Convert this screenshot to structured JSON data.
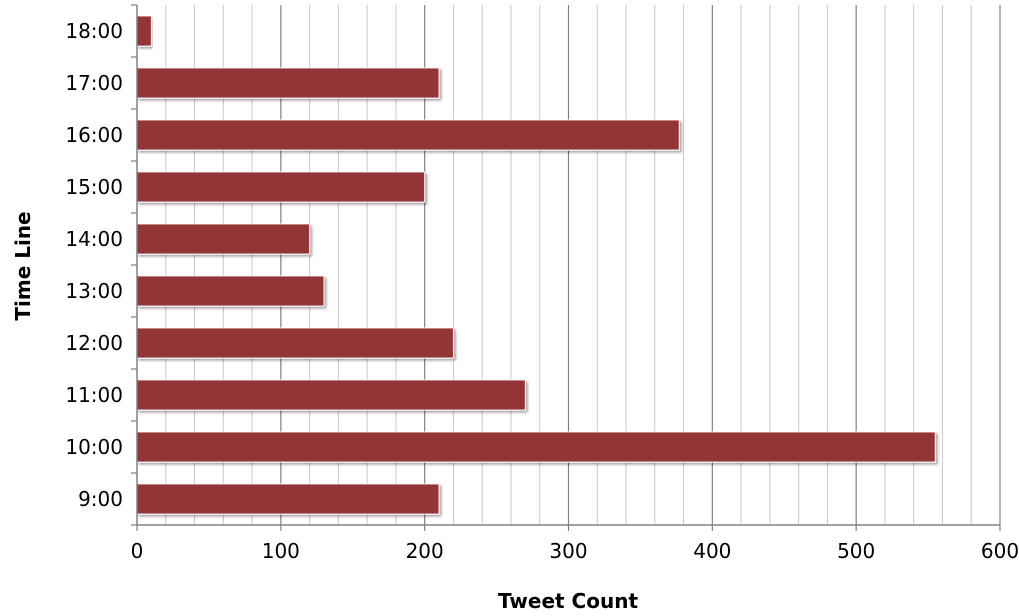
{
  "chart_data": {
    "type": "bar",
    "orientation": "horizontal",
    "categories": [
      "9:00",
      "10:00",
      "11:00",
      "12:00",
      "13:00",
      "14:00",
      "15:00",
      "16:00",
      "17:00",
      "18:00"
    ],
    "values": [
      210,
      555,
      270,
      220,
      130,
      120,
      200,
      377,
      210,
      10
    ],
    "xlabel": "Tweet Count",
    "ylabel": "Time Line",
    "xlim": [
      0,
      600
    ],
    "xticks": [
      0,
      100,
      200,
      300,
      400,
      500,
      600
    ],
    "minor_grid_step": 20,
    "grid": true,
    "legend": "none",
    "bar_color": "#943634",
    "major_grid_color": "#808080",
    "minor_grid_color": "#c8c8c8"
  }
}
